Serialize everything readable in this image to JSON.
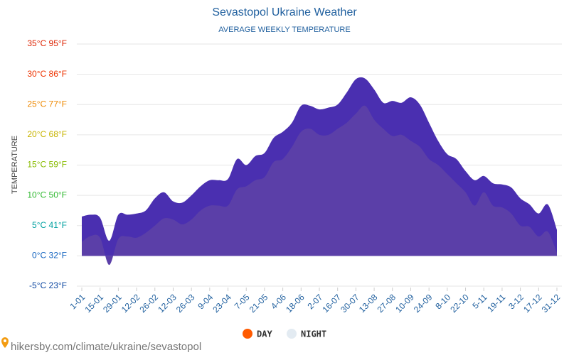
{
  "chart_data": {
    "type": "area",
    "title": "Sevastopol Ukraine Weather",
    "subtitle": "AVERAGE WEEKLY TEMPERATURE",
    "y_label": "TEMPERATURE",
    "source": "hikersby.com/climate/ukraine/sevastopol",
    "categories": [
      "1-01",
      null,
      "15-01",
      null,
      "29-01",
      null,
      "12-02",
      null,
      "26-02",
      null,
      "12-03",
      null,
      "26-03",
      null,
      "9-04",
      null,
      "23-04",
      null,
      "7-05",
      null,
      "21-05",
      null,
      "4-06",
      null,
      "18-06",
      null,
      "2-07",
      null,
      "16-07",
      null,
      "30-07",
      null,
      "13-08",
      null,
      "27-08",
      null,
      "10-09",
      null,
      "24-09",
      null,
      "8-10",
      null,
      "22-10",
      null,
      "5-11",
      null,
      "19-11",
      null,
      "3-12",
      null,
      "17-12",
      null,
      "31-12"
    ],
    "series": [
      {
        "name": "DAY",
        "color": "#ff5a00",
        "values": [
          6.5,
          6.8,
          6.3,
          2.5,
          6.8,
          6.8,
          7.0,
          7.5,
          9.5,
          10.5,
          9.0,
          8.8,
          10.0,
          11.5,
          12.5,
          12.5,
          12.7,
          16.0,
          15.0,
          16.5,
          17.0,
          19.5,
          20.5,
          22.0,
          24.8,
          24.8,
          24.2,
          24.5,
          25.0,
          27.0,
          29.2,
          29.3,
          27.5,
          25.3,
          25.6,
          25.3,
          26.2,
          25.0,
          22.0,
          19.0,
          16.8,
          16.0,
          14.0,
          12.5,
          13.2,
          12.0,
          11.8,
          11.3,
          9.5,
          8.5,
          7.0,
          8.5,
          4.3
        ]
      },
      {
        "name": "NIGHT",
        "color": "#e3ebf2",
        "values": [
          2.3,
          3.3,
          3.0,
          -1.5,
          2.8,
          3.2,
          3.0,
          3.8,
          5.0,
          6.2,
          6.0,
          5.2,
          6.0,
          7.5,
          8.3,
          8.3,
          8.3,
          11.0,
          11.5,
          12.5,
          13.0,
          15.5,
          16.0,
          18.0,
          20.5,
          21.0,
          20.0,
          20.0,
          21.0,
          22.0,
          23.5,
          24.8,
          22.5,
          21.0,
          19.8,
          20.0,
          19.0,
          18.0,
          16.0,
          15.0,
          13.5,
          12.0,
          10.5,
          8.3,
          10.5,
          8.3,
          8.0,
          7.0,
          5.0,
          4.8,
          3.2,
          4.0,
          0.5
        ]
      }
    ],
    "ylim": [
      -5,
      35
    ],
    "yticks": [
      {
        "value": -5,
        "label": "-5°C 23°F"
      },
      {
        "value": 0,
        "label": "0°C 32°F"
      },
      {
        "value": 5,
        "label": "5°C 41°F"
      },
      {
        "value": 10,
        "label": "10°C 50°F"
      },
      {
        "value": 15,
        "label": "15°C 59°F"
      },
      {
        "value": 20,
        "label": "20°C 68°F"
      },
      {
        "value": 25,
        "label": "25°C 77°F"
      },
      {
        "value": 30,
        "label": "30°C 86°F"
      },
      {
        "value": 35,
        "label": "35°C 95°F"
      }
    ],
    "ytick_colors": [
      "#0d47a1",
      "#1565c0",
      "#00a0a0",
      "#2eb82e",
      "#88bb00",
      "#c8b400",
      "#ee8800",
      "#ee3300",
      "#dd2200"
    ],
    "grid": true
  }
}
